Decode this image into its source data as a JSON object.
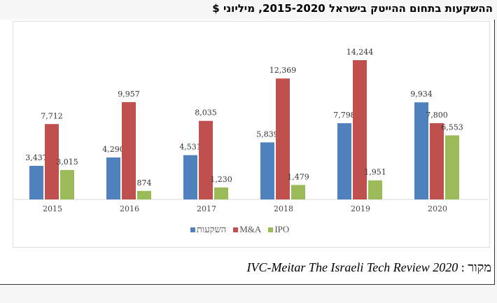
{
  "title": "ההשקעות בתחום ההייטק בישראל 2015-2020, מיליוני $",
  "source": {
    "label": "מקור :",
    "text": "IVC-Meitar The Israeli Tech Review 2020"
  },
  "chart_data": {
    "type": "bar",
    "title": "",
    "categories": [
      "2015",
      "2016",
      "2017",
      "2018",
      "2019",
      "2020"
    ],
    "series": [
      {
        "name": "השקעות",
        "color": "#4f81bd",
        "values": [
          3437,
          4290,
          4531,
          5839,
          7798,
          9934
        ],
        "labels": [
          "3,437",
          "4,290",
          "4,531",
          "5,839",
          "7,798",
          "9,934"
        ]
      },
      {
        "name": "M&A",
        "color": "#c0504d",
        "values": [
          7712,
          9957,
          8035,
          12369,
          14244,
          7800
        ],
        "labels": [
          "7,712",
          "9,957",
          "8,035",
          "12,369",
          "14,244",
          "7,800"
        ]
      },
      {
        "name": "IPO",
        "color": "#9bbb59",
        "values": [
          3015,
          874,
          1230,
          1479,
          1951,
          6553
        ],
        "labels": [
          "3,015",
          "874",
          "1,230",
          "1,479",
          "1,951",
          "6,553"
        ]
      }
    ],
    "ylim": [
      0,
      15000
    ],
    "grid": false,
    "legend": "bottom",
    "data_labels": true
  }
}
